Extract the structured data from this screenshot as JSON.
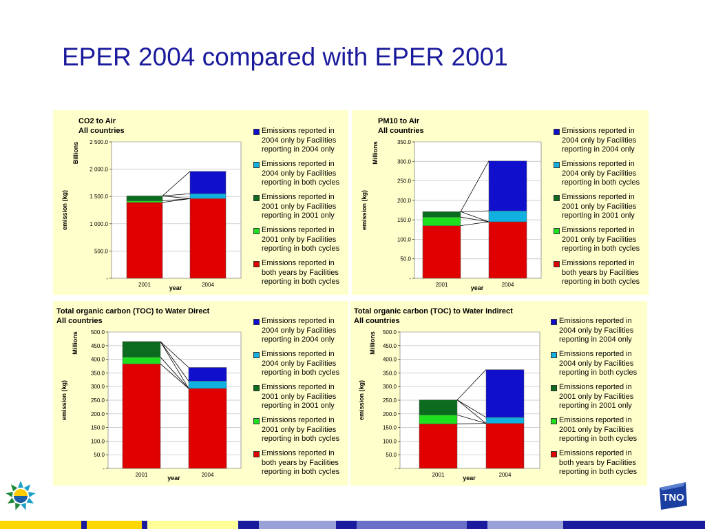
{
  "slide": {
    "title": "EPER 2004 compared with EPER 2001"
  },
  "colors": {
    "panel_bg": "#ffffcc",
    "title_color": "#1a1a9c",
    "emissions_2004_only_new": "#1010cc",
    "emissions_2004_only_both": "#10b0e0",
    "emissions_2001_only_only": "#0b6b1e",
    "emissions_2001_only_both": "#1ee01e",
    "emissions_both_years": "#e00000"
  },
  "legend": [
    {
      "label": "Emissions reported in 2004 only by Facilities reporting in 2004 only",
      "color": "#1010cc"
    },
    {
      "label": "Emissions reported in 2004 only by Facilities reporting in both cycles",
      "color": "#10b0e0"
    },
    {
      "label": "Emissions reported in 2001 only by Facilities reporting in 2001 only",
      "color": "#0b6b1e"
    },
    {
      "label": "Emissions reported in 2001 only by Facilities reporting in both cycles",
      "color": "#1ee01e"
    },
    {
      "label": "Emissions reported in both years by Facilities reporting in both cycles",
      "color": "#e00000"
    }
  ],
  "chart_data": [
    {
      "type": "bar",
      "stacked": true,
      "title": "CO2 to Air",
      "subtitle": "All countries",
      "xlabel": "year",
      "ylabel": "emission (kg)",
      "unit_label": "Billions",
      "categories": [
        "2001",
        "2004"
      ],
      "ylim": [
        0,
        2500
      ],
      "yticks": [
        0,
        500,
        1000,
        1500,
        2000,
        2500
      ],
      "ytick_labels": [
        "-",
        "500.0",
        "1 000.0",
        "1 500.0",
        "2 000.0",
        "2 500.0"
      ],
      "grid": true,
      "legend_position": "right",
      "series": [
        {
          "name": "Emissions reported in both years by Facilities reporting in both cycles",
          "values": [
            1390,
            1460
          ],
          "color": "#e00000"
        },
        {
          "name": "Emissions reported in 2001 only by Facilities reporting in both cycles",
          "values": [
            30,
            0
          ],
          "color": "#1ee01e"
        },
        {
          "name": "Emissions reported in 2001 only by Facilities reporting in 2001 only",
          "values": [
            90,
            0
          ],
          "color": "#0b6b1e"
        },
        {
          "name": "Emissions reported in 2004 only by Facilities reporting in both cycles",
          "values": [
            0,
            90
          ],
          "color": "#10b0e0"
        },
        {
          "name": "Emissions reported in 2004 only by Facilities reporting in 2004 only",
          "values": [
            0,
            410
          ],
          "color": "#1010cc"
        }
      ]
    },
    {
      "type": "bar",
      "stacked": true,
      "title": "PM10 to Air",
      "subtitle": "All countries",
      "xlabel": "year",
      "ylabel": "emission (kg)",
      "unit_label": "Millions",
      "categories": [
        "2001",
        "2004"
      ],
      "ylim": [
        0,
        350
      ],
      "yticks": [
        0,
        50,
        100,
        150,
        200,
        250,
        300,
        350
      ],
      "ytick_labels": [
        "-",
        "50.0",
        "100.0",
        "150.0",
        "200.0",
        "250.0",
        "300.0",
        "350.0"
      ],
      "grid": true,
      "legend_position": "right",
      "series": [
        {
          "name": "Emissions reported in both years by Facilities reporting in both cycles",
          "values": [
            135,
            145
          ],
          "color": "#e00000"
        },
        {
          "name": "Emissions reported in 2001 only by Facilities reporting in both cycles",
          "values": [
            22,
            0
          ],
          "color": "#1ee01e"
        },
        {
          "name": "Emissions reported in 2001 only by Facilities reporting in 2001 only",
          "values": [
            14,
            0
          ],
          "color": "#0b6b1e"
        },
        {
          "name": "Emissions reported in 2004 only by Facilities reporting in both cycles",
          "values": [
            0,
            28
          ],
          "color": "#10b0e0"
        },
        {
          "name": "Emissions reported in 2004 only by Facilities reporting in 2004 only",
          "values": [
            0,
            128
          ],
          "color": "#1010cc"
        }
      ]
    },
    {
      "type": "bar",
      "stacked": true,
      "title": "Total organic carbon (TOC) to Water Direct",
      "subtitle": "All countries",
      "xlabel": "year",
      "ylabel": "emission (kg)",
      "unit_label": "Millions",
      "categories": [
        "2001",
        "2004"
      ],
      "ylim": [
        0,
        500
      ],
      "yticks": [
        0,
        50,
        100,
        150,
        200,
        250,
        300,
        350,
        400,
        450,
        500
      ],
      "ytick_labels": [
        "-",
        "50.0",
        "100.0",
        "150.0",
        "200.0",
        "250.0",
        "300.0",
        "350.0",
        "400.0",
        "450.0",
        "500.0"
      ],
      "grid": true,
      "legend_position": "right",
      "series": [
        {
          "name": "Emissions reported in both years by Facilities reporting in both cycles",
          "values": [
            383,
            293
          ],
          "color": "#e00000"
        },
        {
          "name": "Emissions reported in 2001 only by Facilities reporting in both cycles",
          "values": [
            25,
            0
          ],
          "color": "#1ee01e"
        },
        {
          "name": "Emissions reported in 2001 only by Facilities reporting in 2001 only",
          "values": [
            57,
            0
          ],
          "color": "#0b6b1e"
        },
        {
          "name": "Emissions reported in 2004 only by Facilities reporting in both cycles",
          "values": [
            0,
            27
          ],
          "color": "#10b0e0"
        },
        {
          "name": "Emissions reported in 2004 only by Facilities reporting in 2004 only",
          "values": [
            0,
            50
          ],
          "color": "#1010cc"
        }
      ]
    },
    {
      "type": "bar",
      "stacked": true,
      "title": "Total organic carbon (TOC) to Water Indirect",
      "subtitle": "All countries",
      "xlabel": "year",
      "ylabel": "emission (kg)",
      "unit_label": "Millions",
      "categories": [
        "2001",
        "2004"
      ],
      "ylim": [
        0,
        500
      ],
      "yticks": [
        0,
        50,
        100,
        150,
        200,
        250,
        300,
        350,
        400,
        450,
        500
      ],
      "ytick_labels": [
        "-",
        "50.0",
        "100.0",
        "150.0",
        "200.0",
        "250.0",
        "300.0",
        "350.0",
        "400.0",
        "450.0",
        "500.0"
      ],
      "grid": true,
      "legend_position": "right",
      "series": [
        {
          "name": "Emissions reported in both years by Facilities reporting in both cycles",
          "values": [
            163,
            165
          ],
          "color": "#e00000"
        },
        {
          "name": "Emissions reported in 2001 only by Facilities reporting in both cycles",
          "values": [
            33,
            0
          ],
          "color": "#1ee01e"
        },
        {
          "name": "Emissions reported in 2001 only by Facilities reporting in 2001 only",
          "values": [
            55,
            0
          ],
          "color": "#0b6b1e"
        },
        {
          "name": "Emissions reported in 2004 only by Facilities reporting in both cycles",
          "values": [
            0,
            22
          ],
          "color": "#10b0e0"
        },
        {
          "name": "Emissions reported in 2004 only by Facilities reporting in 2004 only",
          "values": [
            0,
            175
          ],
          "color": "#1010cc"
        }
      ]
    }
  ],
  "logos": {
    "left_logo": "eper-sun-logo",
    "right_logo_text": "TNO"
  },
  "footer_stripe_colors": [
    "#ffd700",
    "#1a1a9c",
    "#ffd700",
    "#1a1a9c",
    "#ffff99",
    "#1a1a9c",
    "#9aa0d8",
    "#1a1a9c",
    "#6a70c8",
    "#1a1a9c",
    "#9aa0d8",
    "#1a1a9c"
  ]
}
